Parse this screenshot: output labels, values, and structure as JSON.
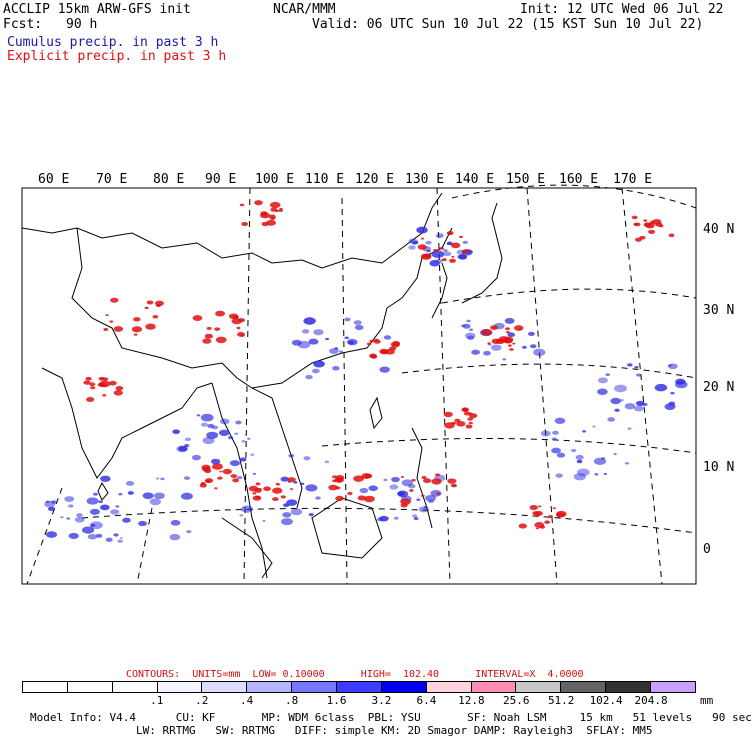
{
  "header": {
    "model_line": "ACCLIP 15km ARW-GFS init",
    "fcst_label": "Fcst:",
    "fcst_value": "90 h",
    "org": "NCAR/MMM",
    "init": "Init: 12 UTC Wed 06 Jul 22",
    "valid": "Valid: 06 UTC Sun 10 Jul 22 (15 KST Sun 10 Jul 22)",
    "cumulus": "Cumulus precip. in past 3 h",
    "explicit": "Explicit precip. in past 3 h"
  },
  "map": {
    "lon_labels": [
      "60 E",
      "70 E",
      "80 E",
      "90 E",
      "100 E",
      "110 E",
      "120 E",
      "130 E",
      "140 E",
      "150 E",
      "160 E",
      "170 E"
    ],
    "lat_labels": [
      "40 N",
      "30 N",
      "20 N",
      "10 N",
      "0"
    ],
    "colors": {
      "cumulus": "#2a2ae0",
      "explicit": "#e01010",
      "coast": "#000000"
    }
  },
  "contours": {
    "text": "CONTOURS:  UNITS=mm  LOW= 0.10000      HIGH=  102.40      INTERVAL=X  4.0000"
  },
  "colorbar": {
    "colors": [
      "#ffffff",
      "#ffffff",
      "#ffffff",
      "#f4f4ff",
      "#dcdcff",
      "#b4b4ff",
      "#7878ff",
      "#3c3cff",
      "#0000f0",
      "#ffd2dc",
      "#ff8cb4",
      "#c8c8c8",
      "#646464",
      "#323232",
      "#c8a0ff"
    ],
    "labels": [
      ".1",
      ".2",
      ".4",
      ".8",
      "1.6",
      "3.2",
      "6.4",
      "12.8",
      "25.6",
      "51.2",
      "102.4",
      "204.8"
    ],
    "unit": "mm"
  },
  "footer": {
    "line1": "Model Info: V4.4      CU: KF       MP: WDM 6class  PBL: YSU       SF: Noah LSM     15 km   51 levels   90 sec",
    "line2": "                LW: RRTMG   SW: RRTMG   DIFF: simple KM: 2D Smagor DAMP: Rayleigh3  SFLAY: MM5"
  }
}
